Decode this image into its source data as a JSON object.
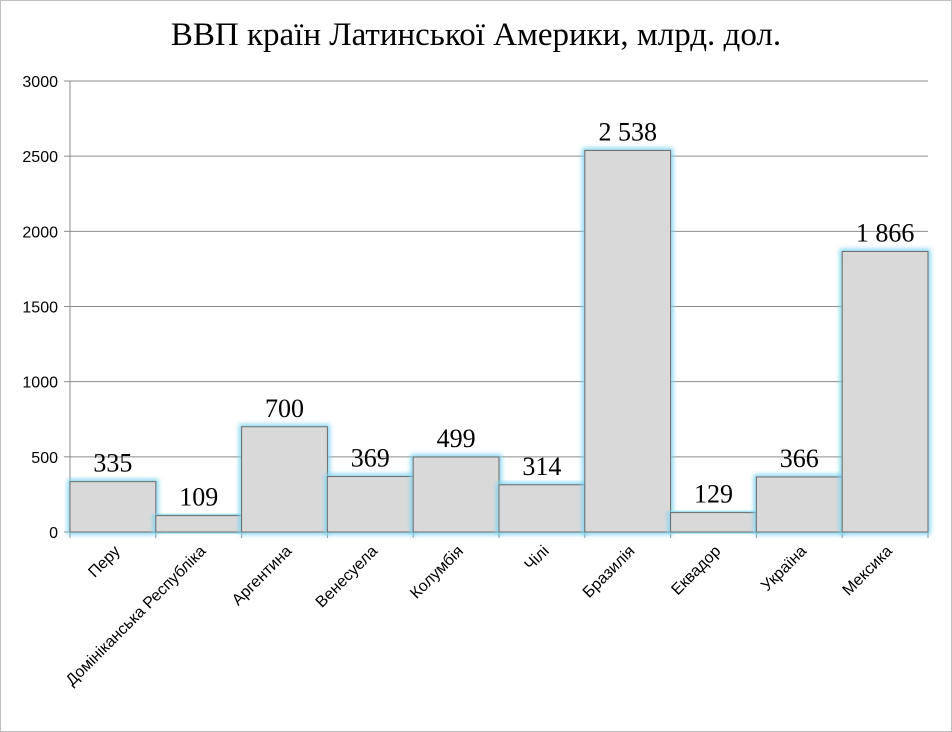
{
  "chart_data": {
    "type": "bar",
    "title": "ВВП країн Латинської Америки, млрд. дол.",
    "categories": [
      "Перу",
      "Домініканська Республіка",
      "Аргентина",
      "Венесуела",
      "Колумбія",
      "Чілі",
      "Бразилія",
      "Еквадор",
      "Україна",
      "Мексика"
    ],
    "values": [
      335,
      109,
      700,
      369,
      499,
      314,
      2538,
      129,
      366,
      1866
    ],
    "data_labels": [
      "335",
      "109",
      "700",
      "369",
      "499",
      "314",
      "2 538",
      "129",
      "366",
      "1 866"
    ],
    "yticks": [
      "0",
      "500",
      "1000",
      "1500",
      "2000",
      "2500",
      "3000"
    ],
    "ylim": [
      0,
      3000
    ],
    "xlabel": "",
    "ylabel": "",
    "grid": true,
    "legend": "none",
    "colors": {
      "bar_fill": "#d9d9d9",
      "bar_stroke": "#6b6b6b",
      "bar_glow": "#7fd4f0",
      "grid": "#8c8c8c"
    }
  }
}
